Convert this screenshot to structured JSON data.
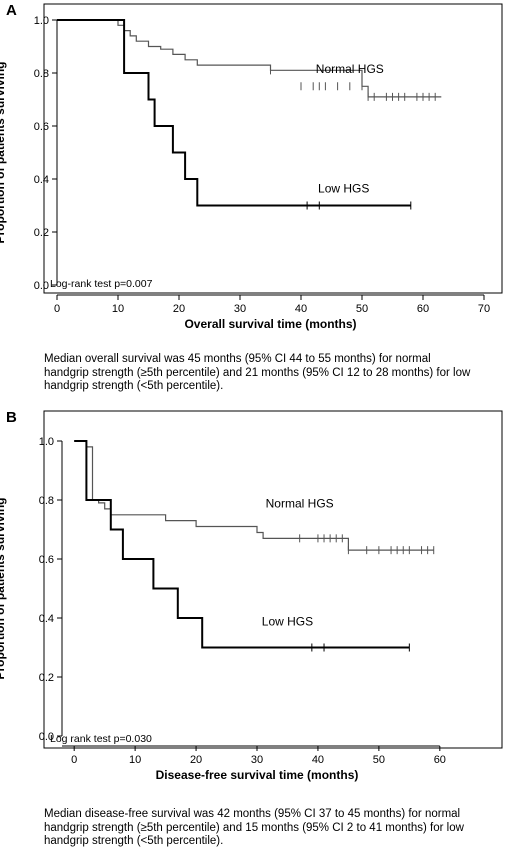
{
  "chart_data": [
    {
      "panel": "A",
      "type": "line",
      "xlabel": "Overall survival time (months)",
      "ylabel": "Proportion of patients surviving",
      "xlim": [
        0,
        70
      ],
      "ylim": [
        0,
        1.0
      ],
      "x_ticks": [
        "0",
        "10",
        "20",
        "30",
        "40",
        "50",
        "60",
        "70"
      ],
      "y_ticks": [
        "0.0",
        "0.2",
        "0.4",
        "0.6",
        "0.8",
        "1.0"
      ],
      "annotation": "Log-rank test p=0.007",
      "series": [
        {
          "name": "Normal HGS",
          "color": "#555555",
          "steps": [
            [
              0,
              1.0
            ],
            [
              10,
              0.98
            ],
            [
              11,
              0.96
            ],
            [
              12,
              0.94
            ],
            [
              13,
              0.92
            ],
            [
              15,
              0.9
            ],
            [
              17,
              0.89
            ],
            [
              19,
              0.87
            ],
            [
              21,
              0.85
            ],
            [
              23,
              0.83
            ],
            [
              35,
              0.81
            ],
            [
              50,
              0.75
            ],
            [
              51,
              0.71
            ],
            [
              63,
              0.71
            ]
          ],
          "censored": [
            [
              35,
              0.81
            ],
            [
              40,
              0.75
            ],
            [
              42,
              0.75
            ],
            [
              43,
              0.75
            ],
            [
              44,
              0.75
            ],
            [
              46,
              0.75
            ],
            [
              48,
              0.75
            ],
            [
              50,
              0.75
            ],
            [
              51,
              0.71
            ],
            [
              52,
              0.71
            ],
            [
              54,
              0.71
            ],
            [
              55,
              0.71
            ],
            [
              56,
              0.71
            ],
            [
              57,
              0.71
            ],
            [
              59,
              0.71
            ],
            [
              60,
              0.71
            ],
            [
              61,
              0.71
            ],
            [
              62,
              0.71
            ]
          ]
        },
        {
          "name": "Low HGS",
          "color": "#000000",
          "steps": [
            [
              0,
              1.0
            ],
            [
              11,
              0.8
            ],
            [
              15,
              0.7
            ],
            [
              16,
              0.6
            ],
            [
              19,
              0.5
            ],
            [
              21,
              0.4
            ],
            [
              23,
              0.3
            ],
            [
              58,
              0.3
            ]
          ],
          "censored": [
            [
              41,
              0.3
            ],
            [
              43,
              0.3
            ],
            [
              58,
              0.3
            ]
          ]
        }
      ]
    },
    {
      "panel": "B",
      "type": "line",
      "xlabel": "Disease-free survival time (months)",
      "ylabel": "Proportion of patients surviving",
      "xlim": [
        -2,
        62
      ],
      "ylim": [
        0,
        1.0
      ],
      "x_ticks": [
        "0",
        "10",
        "20",
        "30",
        "40",
        "50",
        "60"
      ],
      "y_ticks": [
        "0.0",
        "0.2",
        "0.4",
        "0.6",
        "0.8",
        "1.0"
      ],
      "annotation": "Log rank test p=0.030",
      "series": [
        {
          "name": "Normal HGS",
          "color": "#555555",
          "steps": [
            [
              0,
              1.0
            ],
            [
              2,
              0.98
            ],
            [
              3,
              0.8
            ],
            [
              4,
              0.79
            ],
            [
              5,
              0.77
            ],
            [
              6,
              0.75
            ],
            [
              15,
              0.73
            ],
            [
              20,
              0.71
            ],
            [
              30,
              0.69
            ],
            [
              31,
              0.67
            ],
            [
              45,
              0.63
            ],
            [
              59,
              0.63
            ]
          ],
          "censored": [
            [
              37,
              0.67
            ],
            [
              40,
              0.67
            ],
            [
              41,
              0.67
            ],
            [
              42,
              0.67
            ],
            [
              43,
              0.67
            ],
            [
              44,
              0.67
            ],
            [
              45,
              0.63
            ],
            [
              48,
              0.63
            ],
            [
              50,
              0.63
            ],
            [
              52,
              0.63
            ],
            [
              53,
              0.63
            ],
            [
              54,
              0.63
            ],
            [
              55,
              0.63
            ],
            [
              57,
              0.63
            ],
            [
              58,
              0.63
            ],
            [
              59,
              0.63
            ]
          ]
        },
        {
          "name": "Low HGS",
          "color": "#000000",
          "steps": [
            [
              0,
              1.0
            ],
            [
              2,
              0.8
            ],
            [
              6,
              0.7
            ],
            [
              8,
              0.6
            ],
            [
              13,
              0.5
            ],
            [
              17,
              0.4
            ],
            [
              21,
              0.3
            ],
            [
              55,
              0.3
            ]
          ],
          "censored": [
            [
              39,
              0.3
            ],
            [
              41,
              0.3
            ],
            [
              55,
              0.3
            ]
          ]
        }
      ]
    }
  ],
  "captions": {
    "a": "Median overall survival was 45 months (95% CI 44 to 55 months) for normal handgrip strength (≥5th percentile) and 21 months (95% CI 12 to 28 months) for low handgrip strength (<5th percentile).",
    "b": "Median disease-free survival was 42 months (95% CI 37 to 45 months) for normal handgrip strength (≥5th percentile) and 15 months (95% CI 2 to 41 months) for low handgrip strength (<5th percentile)."
  }
}
